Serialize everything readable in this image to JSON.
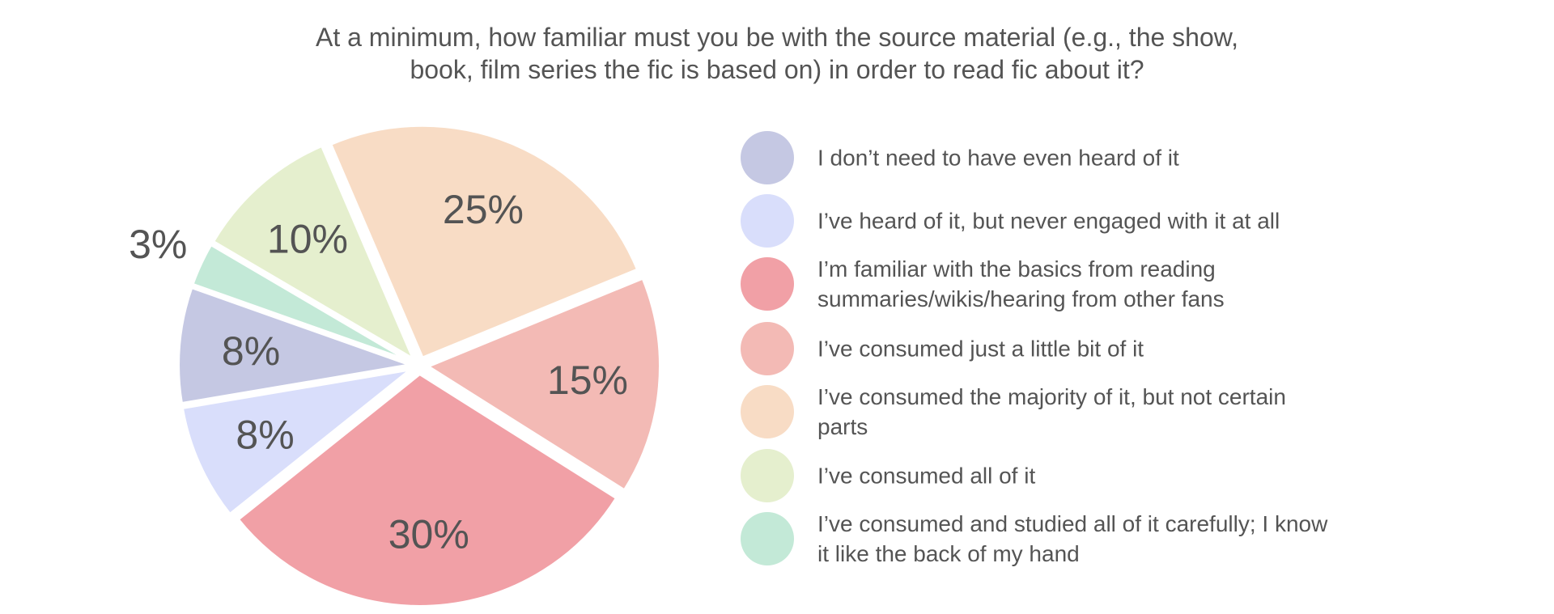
{
  "chart_data": {
    "type": "pie",
    "title_lines": [
      "At a minimum, how familiar must you be with the source material (e.g., the show,",
      "book, film series the fic is based on) in order to read fic about it?"
    ],
    "legend_position": "right",
    "slices": [
      {
        "label": "I don’t need to have even heard of it",
        "value": 8,
        "display": "8%",
        "color": "#c5c8e3"
      },
      {
        "label": "I’ve heard of it, but never engaged with it at all",
        "value": 8,
        "display": "8%",
        "color": "#d9defb"
      },
      {
        "label": "I’m familiar with the basics from reading summaries/wikis/hearing from other fans",
        "value": 30,
        "display": "30%",
        "color": "#f1a0a6"
      },
      {
        "label": "I’ve consumed just a little bit of it",
        "value": 15,
        "display": "15%",
        "color": "#f3bab5"
      },
      {
        "label": "I’ve consumed the majority of it, but not certain parts",
        "value": 25,
        "display": "25%",
        "color": "#f8dcc5"
      },
      {
        "label": "I’ve consumed all of it",
        "value": 10,
        "display": "10%",
        "color": "#e5efce"
      },
      {
        "label": "I’ve consumed and studied all of it carefully; I know it like the back of my hand",
        "value": 3,
        "display": "3%",
        "color": "#c3e9d7"
      }
    ]
  }
}
